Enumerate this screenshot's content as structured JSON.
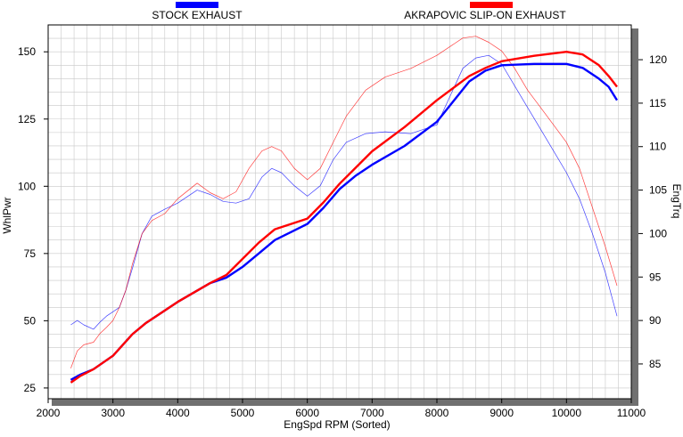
{
  "chart_data": {
    "type": "line",
    "xlabel": "EngSpd  RPM   (Sorted)",
    "ylabel_left": "WhlPwr",
    "ylabel_right": "EngTrq",
    "xlim": [
      2000,
      11000
    ],
    "ylim_left": [
      21,
      160
    ],
    "ylim_right": [
      81,
      124
    ],
    "x_ticks": [
      2000,
      3000,
      4000,
      5000,
      6000,
      7000,
      8000,
      9000,
      10000,
      11000
    ],
    "y_ticks_left": [
      25,
      50,
      75,
      100,
      125,
      150
    ],
    "y_ticks_right": [
      85,
      90,
      95,
      100,
      105,
      110,
      115,
      120
    ],
    "grid": true,
    "legend": [
      {
        "label": "STOCK EXHAUST",
        "color": "#0000ff"
      },
      {
        "label": "AKRAPOVIC SLIP-ON EXHAUST",
        "color": "#ff0000"
      }
    ],
    "series": [
      {
        "name": "STOCK EXHAUST",
        "metric": "WhlPwr",
        "axis": "left",
        "color": "#0000ff",
        "x": [
          2350,
          2500,
          2700,
          3000,
          3300,
          3500,
          4000,
          4500,
          4750,
          5000,
          5250,
          5500,
          5750,
          6000,
          6250,
          6500,
          6750,
          7000,
          7500,
          8000,
          8500,
          8750,
          9000,
          9500,
          10000,
          10250,
          10500,
          10650,
          10780
        ],
        "y": [
          28,
          30,
          32,
          37,
          45,
          49,
          57,
          64,
          66,
          70,
          75,
          80,
          83,
          86,
          92,
          99,
          104,
          108,
          115,
          124,
          139,
          143,
          145,
          145.5,
          145.5,
          144,
          140,
          137,
          132
        ]
      },
      {
        "name": "AKRAPOVIC SLIP-ON EXHAUST",
        "metric": "WhlPwr",
        "axis": "left",
        "color": "#ff0000",
        "x": [
          2350,
          2500,
          2700,
          3000,
          3300,
          3500,
          4000,
          4500,
          4750,
          5000,
          5250,
          5500,
          5750,
          6000,
          6250,
          6500,
          6750,
          7000,
          7500,
          8000,
          8500,
          8750,
          9000,
          9500,
          10000,
          10250,
          10500,
          10650,
          10780
        ],
        "y": [
          27,
          29.5,
          32,
          37,
          45,
          49,
          57,
          64,
          67,
          73,
          79,
          84,
          86,
          88,
          94,
          101,
          107,
          113,
          122,
          132,
          141,
          144,
          146.5,
          148.5,
          150,
          149,
          145,
          141,
          137
        ]
      },
      {
        "name": "STOCK EXHAUST",
        "metric": "EngTrq",
        "axis": "right",
        "color": "#0000ff",
        "x": [
          2350,
          2450,
          2550,
          2700,
          2800,
          2900,
          3000,
          3100,
          3200,
          3300,
          3450,
          3600,
          3800,
          4000,
          4300,
          4500,
          4700,
          4900,
          5100,
          5300,
          5450,
          5600,
          5800,
          6000,
          6200,
          6400,
          6600,
          6900,
          7200,
          7600,
          8000,
          8400,
          8600,
          8800,
          9000,
          9200,
          9400,
          9600,
          9800,
          10000,
          10200,
          10400,
          10600,
          10780
        ],
        "y": [
          89.5,
          90,
          89.5,
          89,
          89.8,
          90.5,
          91,
          91.5,
          93.5,
          96,
          100,
          102,
          102.8,
          103.5,
          105,
          104.5,
          103.7,
          103.5,
          104,
          106.5,
          107.5,
          107,
          105.5,
          104.3,
          105.5,
          108.5,
          110.5,
          111.5,
          111.7,
          111.5,
          112.5,
          119,
          120.2,
          120.5,
          119.5,
          117,
          114.5,
          112,
          109.5,
          107,
          104,
          100,
          95.5,
          90.5
        ]
      },
      {
        "name": "AKRAPOVIC SLIP-ON EXHAUST",
        "metric": "EngTrq",
        "axis": "right",
        "color": "#ff0000",
        "x": [
          2350,
          2450,
          2550,
          2700,
          2800,
          2900,
          3000,
          3100,
          3200,
          3300,
          3450,
          3600,
          3800,
          4000,
          4300,
          4500,
          4700,
          4900,
          5100,
          5300,
          5450,
          5600,
          5800,
          6000,
          6200,
          6400,
          6600,
          6900,
          7200,
          7600,
          8000,
          8400,
          8600,
          8800,
          9000,
          9200,
          9400,
          9600,
          9800,
          10000,
          10200,
          10400,
          10600,
          10780
        ],
        "y": [
          84.5,
          86.5,
          87.2,
          87.5,
          88.5,
          89.2,
          90,
          91.5,
          93.5,
          96.5,
          100,
          101.5,
          102.3,
          104,
          105.8,
          104.7,
          104,
          104.8,
          107.5,
          109.5,
          110,
          109.5,
          107.5,
          106.2,
          107.5,
          110.5,
          113.5,
          116.5,
          118,
          119,
          120.5,
          122.5,
          122.7,
          122,
          121,
          119,
          116.5,
          114.5,
          112.5,
          110.5,
          107.5,
          103,
          98.5,
          94
        ]
      }
    ]
  }
}
